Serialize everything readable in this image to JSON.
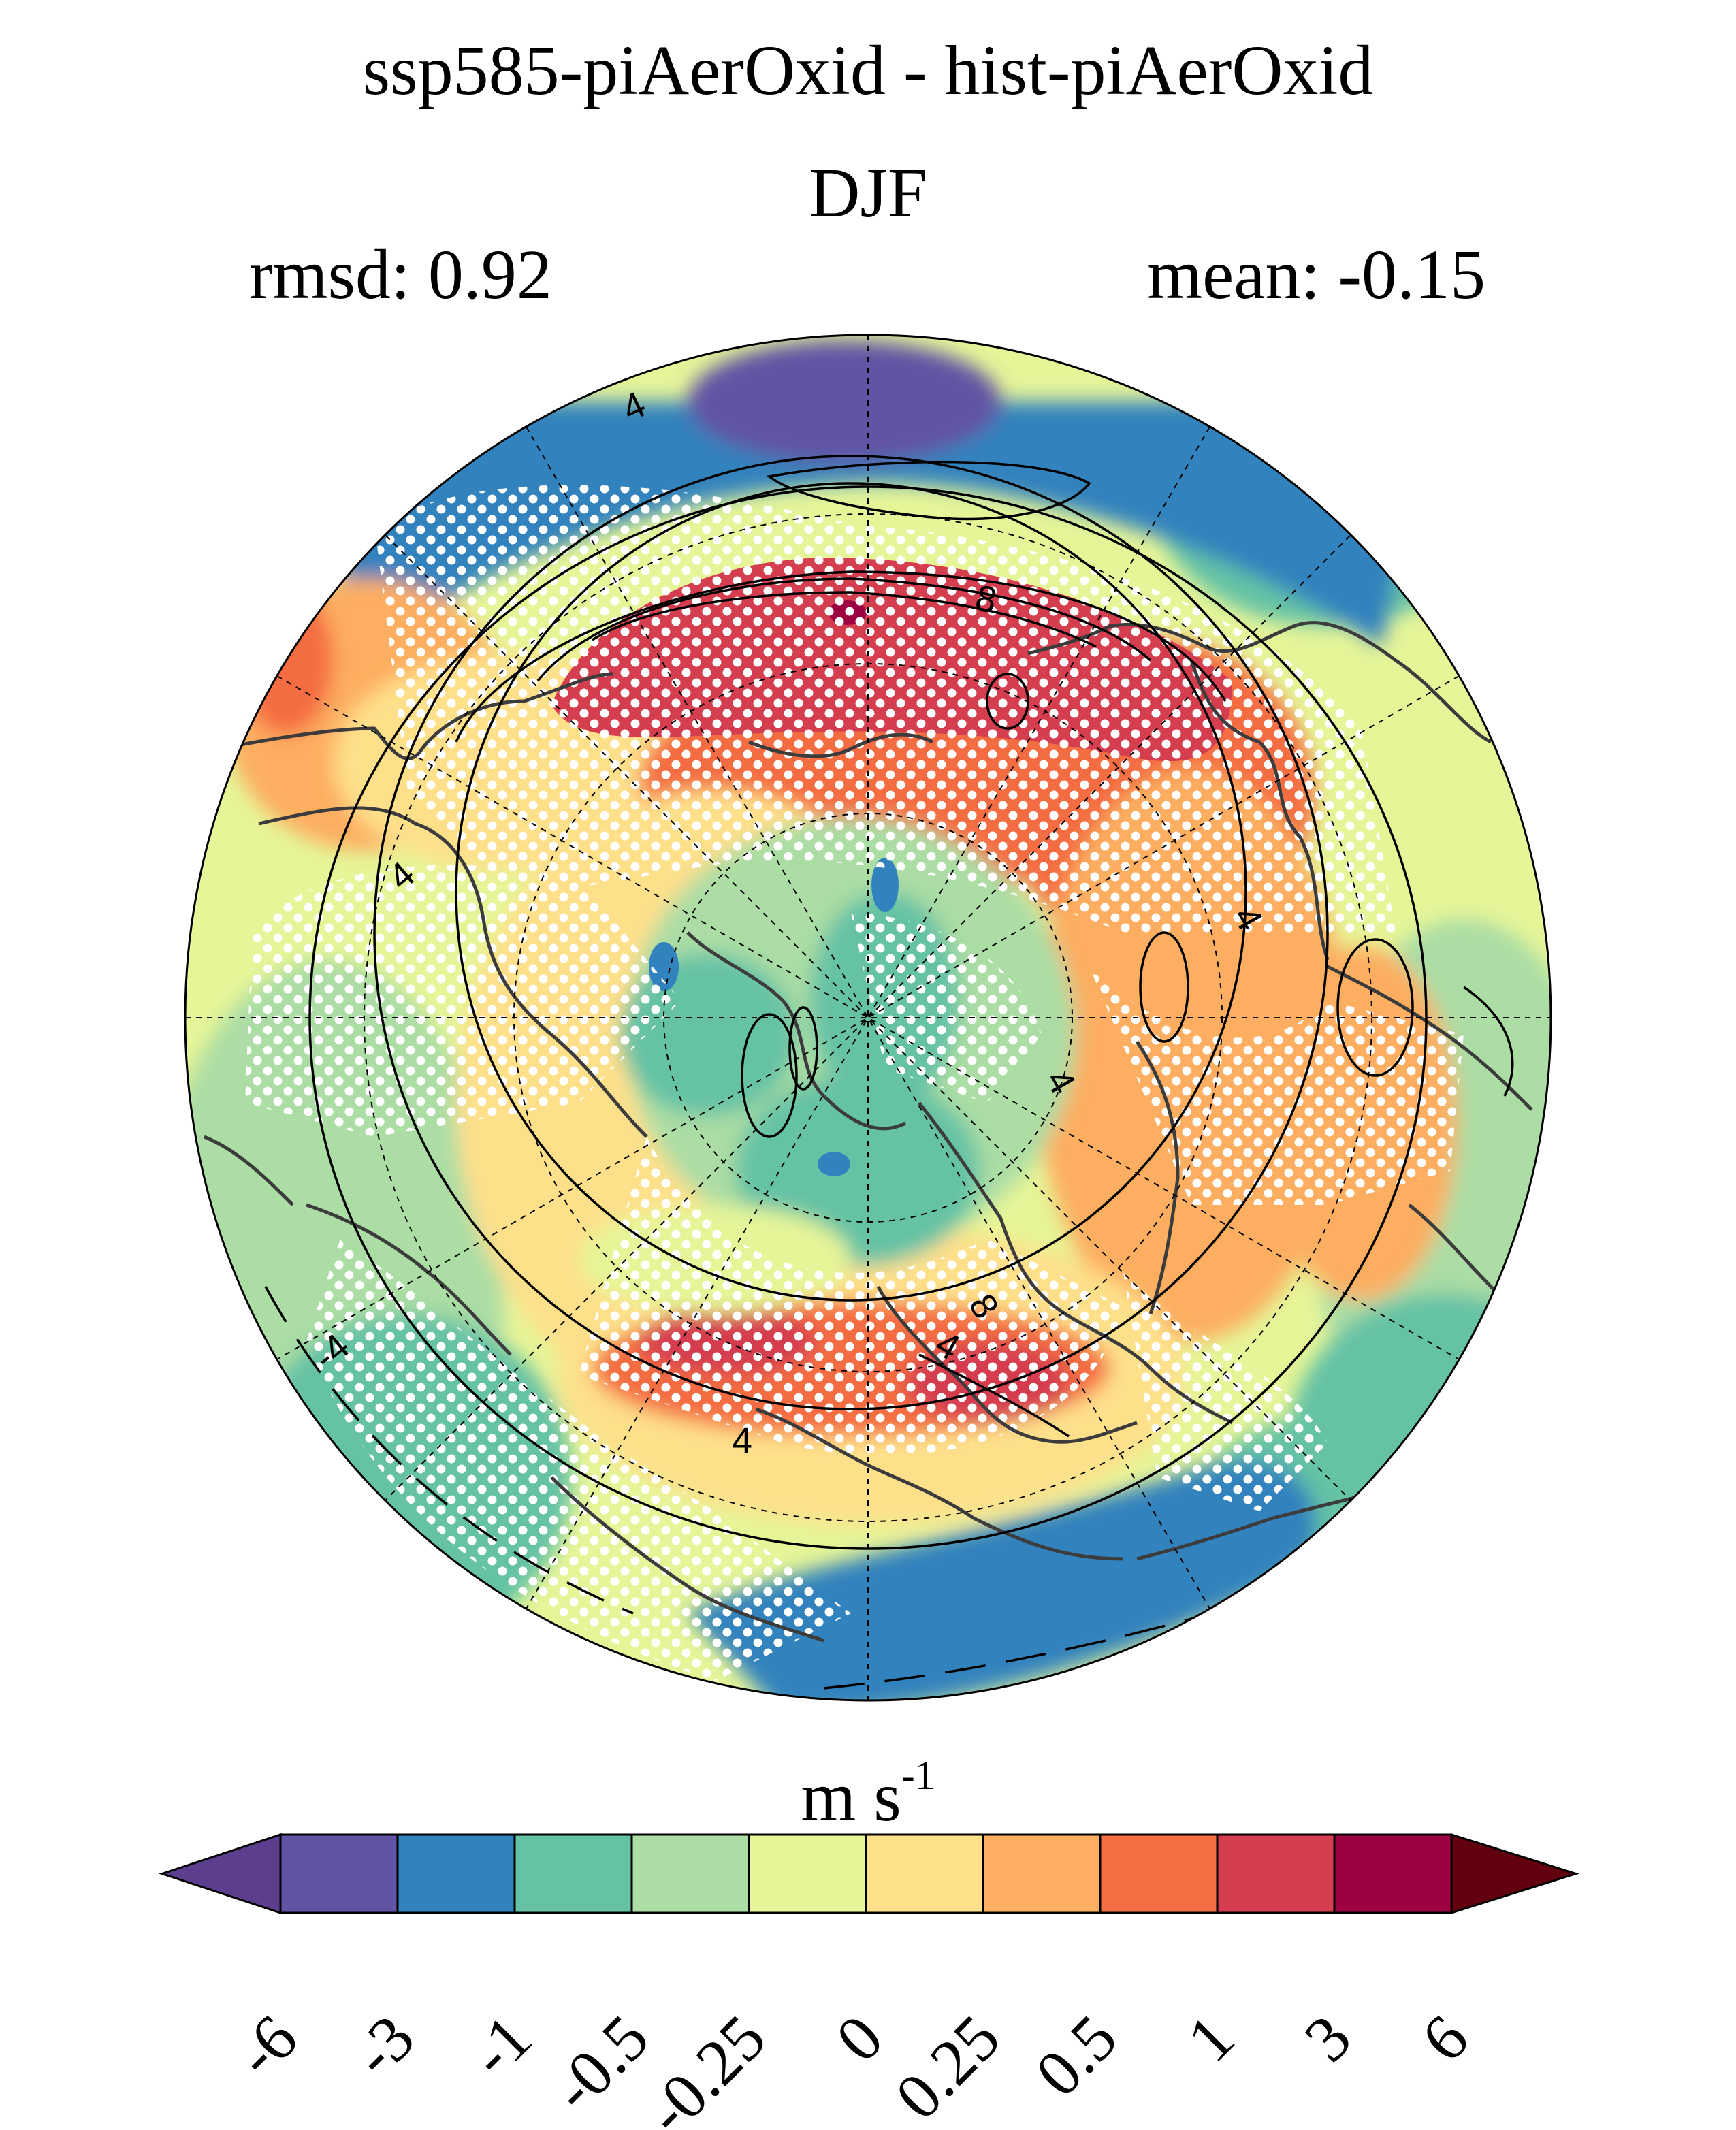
{
  "figure": {
    "title": "ssp585-piAerOxid - hist-piAerOxid",
    "season": "DJF",
    "rmsd_label": "rmsd: 0.92",
    "mean_label": "mean: -0.15"
  },
  "map": {
    "projection": "north polar stereographic",
    "field": "zonal wind difference",
    "stippling": "white dots",
    "contour_labels": [
      "4",
      "8",
      "4",
      "4",
      "4",
      "8",
      "4",
      "4",
      "-4"
    ]
  },
  "colorbar": {
    "unit_base": "m s",
    "unit_exp": "-1",
    "tick_labels": [
      "-6",
      "-3",
      "-1",
      "-0.5",
      "-0.25",
      "0",
      "0.25",
      "0.5",
      "1",
      "3",
      "6"
    ],
    "colors": [
      "#5b3e8e",
      "#6253a4",
      "#3282bd",
      "#65c2a5",
      "#abdda4",
      "#e6f598",
      "#fee08b",
      "#fdae61",
      "#f46d43",
      "#d53e4f",
      "#9e0142",
      "#620010"
    ]
  }
}
